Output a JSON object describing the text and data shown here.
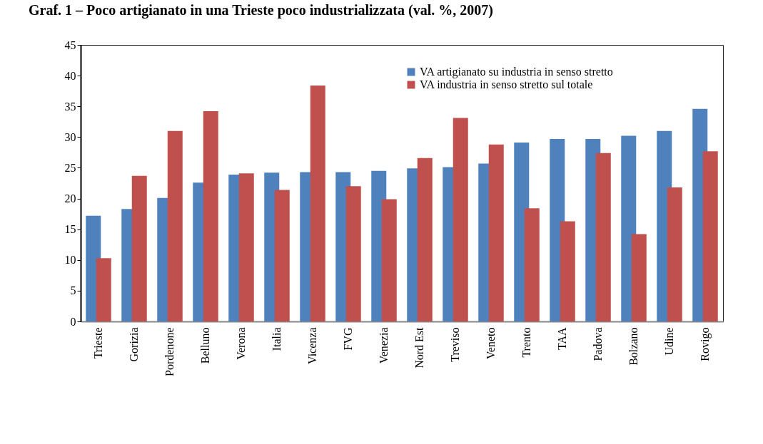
{
  "chart_data": {
    "type": "bar",
    "title": "Graf. 1 – Poco artigianato in una Trieste poco industrializzata (val. %, 2007)",
    "categories": [
      "Trieste",
      "Gorizia",
      "Pordenone",
      "Belluno",
      "Verona",
      "Italia",
      "Vicenza",
      "FVG",
      "Venezia",
      "Nord Est",
      "Treviso",
      "Veneto",
      "Trento",
      "TAA",
      "Padova",
      "Bolzano",
      "Udine",
      "Rovigo"
    ],
    "series": [
      {
        "name": "VA artigianato su industria in senso stretto",
        "color": "#4f81bd",
        "values": [
          17.2,
          18.3,
          20.1,
          22.6,
          23.9,
          24.2,
          24.3,
          24.3,
          24.5,
          24.9,
          25.1,
          25.7,
          29.1,
          29.7,
          29.7,
          30.2,
          31.0,
          34.6
        ]
      },
      {
        "name": "VA industria in senso stretto sul totale",
        "color": "#c0504d",
        "values": [
          10.3,
          23.7,
          31.0,
          34.2,
          24.1,
          21.4,
          38.4,
          22.0,
          19.9,
          26.6,
          33.1,
          28.8,
          18.4,
          16.3,
          27.4,
          14.2,
          21.8,
          27.7
        ]
      }
    ],
    "ylim": [
      0,
      45
    ],
    "yticks": [
      0,
      5,
      10,
      15,
      20,
      25,
      30,
      35,
      40,
      45
    ],
    "grid": false,
    "legend": "top"
  }
}
